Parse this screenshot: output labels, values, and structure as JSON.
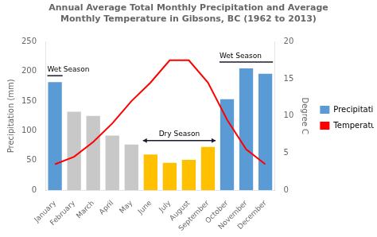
{
  "chart_data": {
    "type": "bar",
    "title": "Annual Average Total Monthly Precipitation and Average",
    "subtitle": "Monthly Temperature in Gibsons, BC (1962 to 2013)",
    "categories": [
      "January",
      "February",
      "March",
      "April",
      "May",
      "June",
      "July",
      "August",
      "September",
      "October",
      "November",
      "December"
    ],
    "series": [
      {
        "name": "Precipitation",
        "type": "bar",
        "color": "#5B9BD5",
        "colors": [
          "#5B9BD5",
          "#C8C8C8",
          "#C8C8C8",
          "#C8C8C8",
          "#C8C8C8",
          "#FFC000",
          "#FFC000",
          "#FFC000",
          "#FFC000",
          "#5B9BD5",
          "#5B9BD5",
          "#5B9BD5"
        ],
        "values": [
          182,
          132,
          125,
          92,
          77,
          60,
          46,
          51,
          73,
          153,
          205,
          196
        ]
      },
      {
        "name": "Temperature",
        "type": "line",
        "color": "#FF0000",
        "axis": "y2",
        "values": [
          3.5,
          4.5,
          6.5,
          9.0,
          12.0,
          14.5,
          17.5,
          17.5,
          14.5,
          9.5,
          5.5,
          3.5
        ]
      }
    ],
    "ylabel": "Precipitation (mm)",
    "y2label": "Degree C",
    "ylim": [
      0,
      250
    ],
    "yticks": [
      0,
      50,
      100,
      150,
      200,
      250
    ],
    "y2lim": [
      0,
      20
    ],
    "y2ticks": [
      0,
      5,
      10,
      15,
      20
    ],
    "grid": false,
    "legend": "right",
    "annotations": [
      {
        "text": "Wet Season",
        "start": "January",
        "end": "January"
      },
      {
        "text": "Wet Season",
        "start": "October",
        "end": "December"
      },
      {
        "text": "Dry Season",
        "start": "June",
        "end": "September",
        "line_style": "double_arrow"
      }
    ]
  }
}
